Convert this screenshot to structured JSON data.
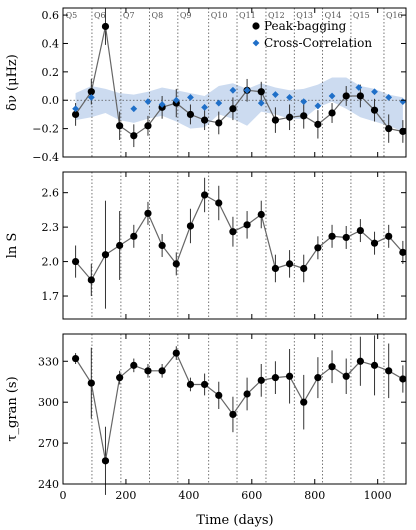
{
  "chart_data": {
    "type": "line",
    "xlabel": "Time (days)",
    "xlim": [
      0,
      1090
    ],
    "x_ticks": [
      0,
      200,
      400,
      600,
      800,
      1000
    ],
    "x": [
      40,
      90,
      135,
      180,
      225,
      270,
      315,
      360,
      405,
      450,
      495,
      540,
      585,
      630,
      675,
      720,
      765,
      810,
      855,
      900,
      945,
      990,
      1035,
      1080
    ],
    "quarter_lines": [
      92,
      184,
      275,
      365,
      463,
      553,
      645,
      735,
      825,
      915,
      1020
    ],
    "quarter_labels": [
      {
        "label": "Q5",
        "x": 2
      },
      {
        "label": "Q6",
        "x": 92
      },
      {
        "label": "Q7",
        "x": 184
      },
      {
        "label": "Q8",
        "x": 275
      },
      {
        "label": "Q9",
        "x": 365
      },
      {
        "label": "Q10",
        "x": 463
      },
      {
        "label": "Q11",
        "x": 553
      },
      {
        "label": "Q12",
        "x": 645
      },
      {
        "label": "Q13",
        "x": 735
      },
      {
        "label": "Q14",
        "x": 825
      },
      {
        "label": "Q15",
        "x": 915
      },
      {
        "label": "Q16",
        "x": 1020
      }
    ],
    "panels": [
      {
        "ylabel": "δν (μHz)",
        "ylim": [
          -0.4,
          0.65
        ],
        "y_ticks": [
          -0.4,
          -0.2,
          0.0,
          0.2,
          0.4,
          0.6
        ],
        "y_tick_labels": [
          "−0.4",
          "−0.2",
          "0.0",
          "0.2",
          "0.4",
          "0.6"
        ],
        "legend_position": "top-right",
        "series": [
          {
            "name": "Peak-bagging",
            "marker": "circle",
            "color": "#000000",
            "y": [
              -0.1,
              0.06,
              0.52,
              -0.18,
              -0.25,
              -0.18,
              -0.05,
              -0.02,
              -0.1,
              -0.14,
              -0.16,
              -0.06,
              0.07,
              0.06,
              -0.14,
              -0.12,
              -0.11,
              -0.17,
              -0.09,
              0.03,
              0.03,
              -0.07,
              -0.2,
              -0.22
            ],
            "yerr": [
              0.08,
              0.09,
              0.13,
              0.1,
              0.08,
              0.07,
              0.08,
              0.1,
              0.07,
              0.07,
              0.08,
              0.08,
              0.08,
              0.07,
              0.09,
              0.09,
              0.09,
              0.1,
              0.07,
              0.07,
              0.08,
              0.08,
              0.1,
              0.08
            ]
          },
          {
            "name": "Cross-Correlation",
            "marker": "diamond",
            "color": "#1f6fc8",
            "y": [
              -0.06,
              0.02,
              null,
              -0.06,
              -0.01,
              -0.03,
              0.0,
              0.02,
              -0.05,
              -0.02,
              0.07,
              0.07,
              -0.02,
              0.04,
              0.02,
              -0.01,
              -0.04,
              0.03,
              0.09,
              0.06,
              0.02,
              -0.01,
              -0.07,
              null
            ],
            "x_override": [
              40,
              90,
              null,
              225,
              270,
              315,
              360,
              405,
              450,
              495,
              540,
              585,
              630,
              675,
              720,
              765,
              810,
              855,
              940,
              990,
              1035,
              1080,
              null,
              null
            ],
            "band_color": "#c6d7ee",
            "band_upper": [
              0.05,
              0.1,
              0.08,
              0.05,
              0.04,
              0.06,
              0.09,
              0.07,
              0.05,
              0.03,
              0.1,
              0.12,
              0.08,
              0.12,
              0.09,
              0.07,
              0.08,
              0.11,
              0.16,
              0.16,
              0.1,
              0.08,
              0.04,
              0.02
            ],
            "band_lower": [
              -0.14,
              -0.12,
              -0.09,
              -0.14,
              -0.16,
              -0.13,
              -0.11,
              -0.15,
              -0.2,
              -0.19,
              -0.1,
              -0.13,
              -0.18,
              -0.08,
              -0.1,
              -0.13,
              -0.13,
              -0.05,
              -0.01,
              -0.06,
              -0.12,
              -0.15,
              -0.18,
              -0.22
            ]
          }
        ]
      },
      {
        "ylabel": "ln S",
        "ylim": [
          1.5,
          2.78
        ],
        "y_ticks": [
          1.7,
          2.0,
          2.3,
          2.6
        ],
        "y_tick_labels": [
          "1.7",
          "2.0",
          "2.3",
          "2.6"
        ],
        "series": [
          {
            "name": "",
            "marker": "circle",
            "color": "#000000",
            "y": [
              2.0,
              1.84,
              2.06,
              2.14,
              2.22,
              2.42,
              2.14,
              1.98,
              2.31,
              2.58,
              2.51,
              2.26,
              2.32,
              2.41,
              1.94,
              1.98,
              1.94,
              2.12,
              2.22,
              2.21,
              2.27,
              2.16,
              2.22,
              2.08
            ],
            "yerr": [
              0.14,
              0.14,
              0.47,
              0.3,
              0.1,
              0.1,
              0.1,
              0.1,
              0.15,
              0.15,
              0.15,
              0.13,
              0.12,
              0.12,
              0.12,
              0.12,
              0.12,
              0.1,
              0.1,
              0.1,
              0.1,
              0.1,
              0.1,
              0.1
            ]
          }
        ]
      },
      {
        "ylabel": "τ_gran (s)",
        "ylim": [
          240,
          350
        ],
        "y_ticks": [
          240,
          270,
          300,
          330
        ],
        "y_tick_labels": [
          "240",
          "270",
          "300",
          "330"
        ],
        "series": [
          {
            "name": "",
            "marker": "circle",
            "color": "#000000",
            "y": [
              332,
              314,
              257,
              318,
              327,
              323,
              323,
              336,
              313,
              313,
              305,
              291,
              306,
              316,
              318,
              319,
              300,
              318,
              326,
              319,
              330,
              327,
              323,
              317
            ],
            "yerr": [
              4,
              26,
              25,
              5,
              5,
              5,
              5,
              5,
              5,
              8,
              10,
              13,
              12,
              12,
              12,
              20,
              20,
              15,
              12,
              13,
              18,
              22,
              20,
              10
            ]
          }
        ]
      }
    ]
  }
}
